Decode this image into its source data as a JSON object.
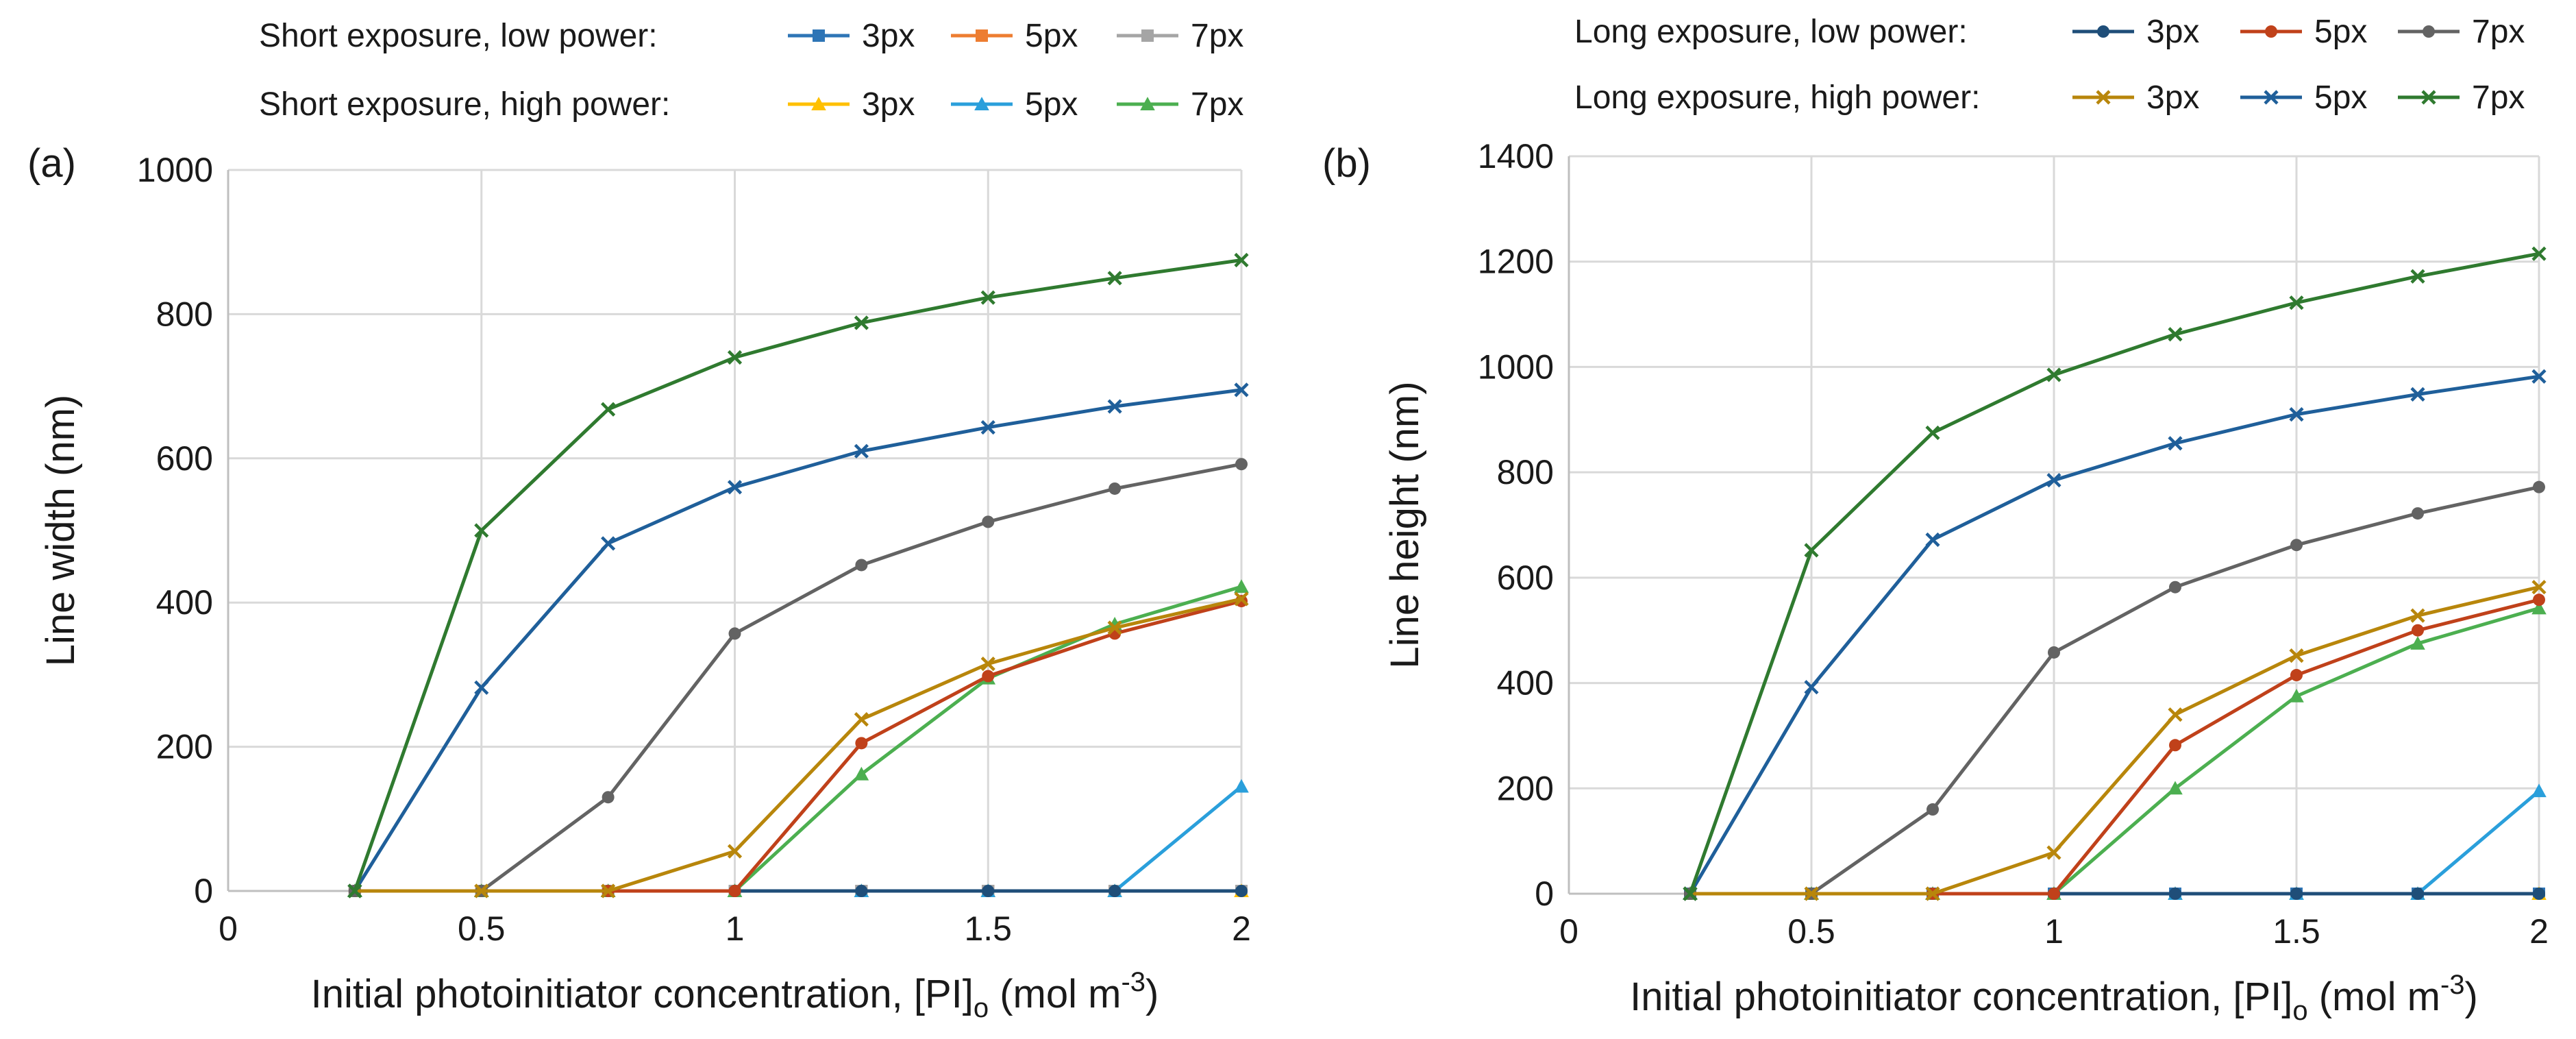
{
  "chart_data": [
    {
      "type": "line",
      "panel_label": "(a)",
      "xlabel": {
        "main": "Initial photoinitiator concentration, [PI]",
        "sub": "o",
        "unit_start": " (mol m",
        "sup": "-3",
        "unit_end": ")"
      },
      "ylabel": "Line width (nm)",
      "xlim": [
        0,
        2
      ],
      "ylim": [
        0,
        1000
      ],
      "xticks": [
        0,
        0.5,
        1,
        1.5,
        2
      ],
      "yticks": [
        0,
        200,
        400,
        600,
        800,
        1000
      ],
      "x": [
        0.25,
        0.5,
        0.75,
        1,
        1.25,
        1.5,
        1.75,
        2
      ],
      "legend_titles": [
        "Short exposure, low power:",
        "Short exposure, high power:"
      ],
      "series": [
        {
          "name": "3px",
          "group": "Short exposure, low power:",
          "marker": "square",
          "color": "#2e75b6",
          "values": [
            0,
            0,
            0,
            0,
            0,
            0,
            0,
            0
          ]
        },
        {
          "name": "5px",
          "group": "Short exposure, low power:",
          "marker": "square",
          "color": "#ed7d31",
          "values": [
            0,
            0,
            0,
            0,
            0,
            0,
            0,
            0
          ]
        },
        {
          "name": "7px",
          "group": "Short exposure, low power:",
          "marker": "square",
          "color": "#a5a5a5",
          "values": [
            0,
            0,
            0,
            0,
            0,
            0,
            0,
            0
          ]
        },
        {
          "name": "3px",
          "group": "Short exposure, high power:",
          "marker": "triangle",
          "color": "#ffc000",
          "values": [
            0,
            0,
            0,
            0,
            0,
            0,
            0,
            0
          ]
        },
        {
          "name": "5px",
          "group": "Short exposure, high power:",
          "marker": "triangle",
          "color": "#2a9fdb",
          "values": [
            0,
            0,
            0,
            0,
            0,
            0,
            0,
            145
          ]
        },
        {
          "name": "7px",
          "group": "Short exposure, high power:",
          "marker": "triangle",
          "color": "#4caf50",
          "values": [
            0,
            0,
            0,
            0,
            162,
            295,
            370,
            422
          ]
        },
        {
          "name": "long-low-3px",
          "legend": false,
          "marker": "circle",
          "color": "#1f4e79",
          "values": [
            0,
            0,
            0,
            0,
            0,
            0,
            0,
            0
          ]
        },
        {
          "name": "long-low-5px",
          "legend": false,
          "marker": "circle",
          "color": "#c0411a",
          "values": [
            0,
            0,
            0,
            0,
            205,
            298,
            357,
            402
          ]
        },
        {
          "name": "long-low-7px",
          "legend": false,
          "marker": "circle",
          "color": "#636363",
          "values": [
            0,
            0,
            130,
            357,
            452,
            512,
            558,
            592
          ]
        },
        {
          "name": "long-high-3px",
          "legend": false,
          "marker": "x",
          "color": "#b8860b",
          "values": [
            0,
            0,
            0,
            55,
            238,
            315,
            365,
            405
          ]
        },
        {
          "name": "long-high-5px",
          "legend": false,
          "marker": "x",
          "color": "#1f5f9a",
          "values": [
            0,
            282,
            482,
            560,
            610,
            643,
            672,
            695
          ]
        },
        {
          "name": "long-high-7px",
          "legend": false,
          "marker": "x",
          "color": "#2f7a2f",
          "values": [
            0,
            500,
            668,
            740,
            788,
            823,
            850,
            875
          ]
        }
      ]
    },
    {
      "type": "line",
      "panel_label": "(b)",
      "xlabel": {
        "main": "Initial photoinitiator concentration, [PI]",
        "sub": "o",
        "unit_start": " (mol m",
        "sup": "-3",
        "unit_end": ")"
      },
      "ylabel": "Line height (nm)",
      "xlim": [
        0,
        2
      ],
      "ylim": [
        0,
        1400
      ],
      "xticks": [
        0,
        0.5,
        1,
        1.5,
        2
      ],
      "yticks": [
        0,
        200,
        400,
        600,
        800,
        1000,
        1200,
        1400
      ],
      "x": [
        0.25,
        0.5,
        0.75,
        1,
        1.25,
        1.5,
        1.75,
        2
      ],
      "legend_titles": [
        "Long exposure, low power:",
        "Long exposure, high power:"
      ],
      "series": [
        {
          "name": "short-low-3px",
          "legend": false,
          "marker": "square",
          "color": "#2e75b6",
          "values": [
            0,
            0,
            0,
            0,
            0,
            0,
            0,
            0
          ]
        },
        {
          "name": "short-high-3px",
          "legend": false,
          "marker": "triangle",
          "color": "#ffc000",
          "values": [
            0,
            0,
            0,
            0,
            0,
            0,
            0,
            0
          ]
        },
        {
          "name": "short-high-5px",
          "legend": false,
          "marker": "triangle",
          "color": "#2a9fdb",
          "values": [
            0,
            0,
            0,
            0,
            0,
            0,
            0,
            195
          ]
        },
        {
          "name": "short-high-7px",
          "legend": false,
          "marker": "triangle",
          "color": "#4caf50",
          "values": [
            0,
            0,
            0,
            0,
            200,
            375,
            475,
            542
          ]
        },
        {
          "name": "3px",
          "group": "Long exposure, low power:",
          "marker": "circle",
          "color": "#1f4e79",
          "values": [
            0,
            0,
            0,
            0,
            0,
            0,
            0,
            0
          ]
        },
        {
          "name": "5px",
          "group": "Long exposure, low power:",
          "marker": "circle",
          "color": "#c0411a",
          "values": [
            0,
            0,
            0,
            0,
            282,
            415,
            500,
            558
          ]
        },
        {
          "name": "7px",
          "group": "Long exposure, low power:",
          "marker": "circle",
          "color": "#636363",
          "values": [
            0,
            0,
            160,
            458,
            582,
            662,
            722,
            772
          ]
        },
        {
          "name": "3px",
          "group": "Long exposure, high power:",
          "marker": "x",
          "color": "#b8860b",
          "values": [
            0,
            0,
            0,
            78,
            340,
            452,
            528,
            582
          ]
        },
        {
          "name": "5px",
          "group": "Long exposure, high power:",
          "marker": "x",
          "color": "#1f5f9a",
          "values": [
            0,
            392,
            672,
            785,
            855,
            910,
            948,
            982
          ]
        },
        {
          "name": "7px",
          "group": "Long exposure, high power:",
          "marker": "x",
          "color": "#2f7a2f",
          "values": [
            0,
            652,
            875,
            985,
            1062,
            1122,
            1172,
            1215
          ]
        }
      ]
    }
  ]
}
